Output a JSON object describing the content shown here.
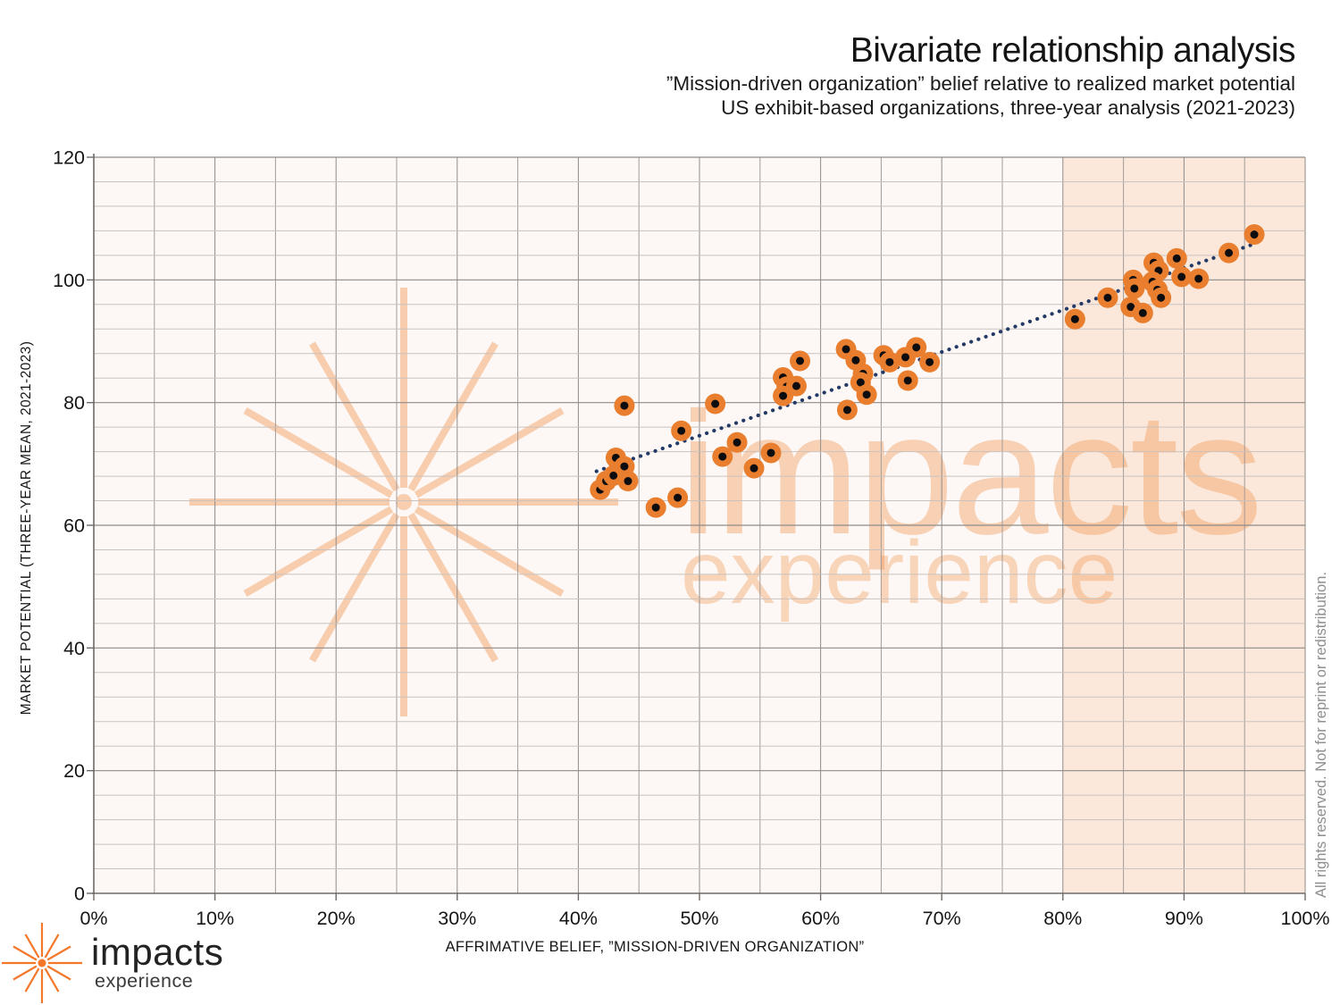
{
  "header": {
    "title": "Bivariate relationship analysis",
    "subtitle1": "”Mission-driven organization” belief relative to realized market potential",
    "subtitle2": "US exhibit-based organizations, three-year analysis (2021-2023)"
  },
  "chart_data": {
    "type": "scatter",
    "title": "Bivariate relationship analysis",
    "subtitle": [
      "”Mission-driven organization” belief relative to realized market potential",
      "US exhibit-based organizations, three-year analysis (2021-2023)"
    ],
    "xlabel": "AFFRIMATIVE BELIEF, ”MISSION-DRIVEN ORGANIZATION”",
    "ylabel": "MARKET POTENTIAL (THREE-YEAR MEAN, 2021-2023)",
    "xlim_pct": [
      0,
      100
    ],
    "ylim": [
      0,
      120
    ],
    "x_tick_labels": [
      "0%",
      "10%",
      "20%",
      "30%",
      "40%",
      "50%",
      "60%",
      "70%",
      "80%",
      "90%",
      "100%"
    ],
    "y_tick_values": [
      0,
      20,
      40,
      60,
      80,
      100,
      120
    ],
    "x_minor_step_pct": 5,
    "y_minor_step": 4,
    "grid": true,
    "legend": false,
    "highlight_band_pct": [
      80,
      100
    ],
    "points_pct_x_y": [
      [
        41.8,
        65.8
      ],
      [
        42.3,
        67.2
      ],
      [
        42.9,
        68.1
      ],
      [
        43.1,
        71.0
      ],
      [
        43.8,
        69.6
      ],
      [
        44.1,
        67.2
      ],
      [
        43.8,
        79.5
      ],
      [
        46.4,
        62.9
      ],
      [
        48.2,
        64.5
      ],
      [
        48.5,
        75.4
      ],
      [
        51.3,
        79.8
      ],
      [
        51.9,
        71.2
      ],
      [
        53.1,
        73.5
      ],
      [
        54.5,
        69.3
      ],
      [
        55.9,
        71.8
      ],
      [
        56.9,
        84.1
      ],
      [
        57.2,
        82.6
      ],
      [
        58.0,
        82.7
      ],
      [
        56.9,
        81.1
      ],
      [
        58.3,
        86.8
      ],
      [
        62.1,
        88.7
      ],
      [
        62.9,
        86.9
      ],
      [
        63.5,
        84.7
      ],
      [
        63.3,
        83.3
      ],
      [
        63.8,
        81.3
      ],
      [
        62.2,
        78.8
      ],
      [
        65.2,
        87.7
      ],
      [
        65.7,
        86.6
      ],
      [
        67.0,
        87.4
      ],
      [
        67.9,
        89.0
      ],
      [
        69.0,
        86.6
      ],
      [
        67.2,
        83.6
      ],
      [
        81.0,
        93.6
      ],
      [
        83.7,
        97.1
      ],
      [
        85.8,
        100.0
      ],
      [
        85.9,
        98.6
      ],
      [
        85.6,
        95.6
      ],
      [
        86.6,
        94.6
      ],
      [
        87.5,
        102.8
      ],
      [
        87.9,
        101.5
      ],
      [
        87.4,
        99.7
      ],
      [
        87.8,
        98.4
      ],
      [
        88.1,
        97.1
      ],
      [
        89.4,
        103.5
      ],
      [
        89.8,
        100.5
      ],
      [
        91.2,
        100.2
      ],
      [
        93.7,
        104.4
      ],
      [
        95.8,
        107.4
      ]
    ],
    "trendline": {
      "x1_pct": 41.5,
      "y1": 68.8,
      "x2_pct": 95.7,
      "y2": 105.8,
      "style": "dotted"
    },
    "colors": {
      "point": "#e87e2e",
      "point_center": "#0d0d10",
      "trend": "#233a66",
      "band": "#fbe8da",
      "plot_bg": "#fdf8f6",
      "grid_major": "#8f8b89",
      "grid_minor": "#c9c2be",
      "axis": "#6e6a67",
      "watermark": "#f08a3c",
      "tick_text": "#161616"
    }
  },
  "watermark": {
    "line1": "impacts",
    "line2": "experience"
  },
  "logo": {
    "name": "impacts",
    "sub": "experience"
  },
  "rights": "All rights reserved. Not for reprint or redistribution."
}
